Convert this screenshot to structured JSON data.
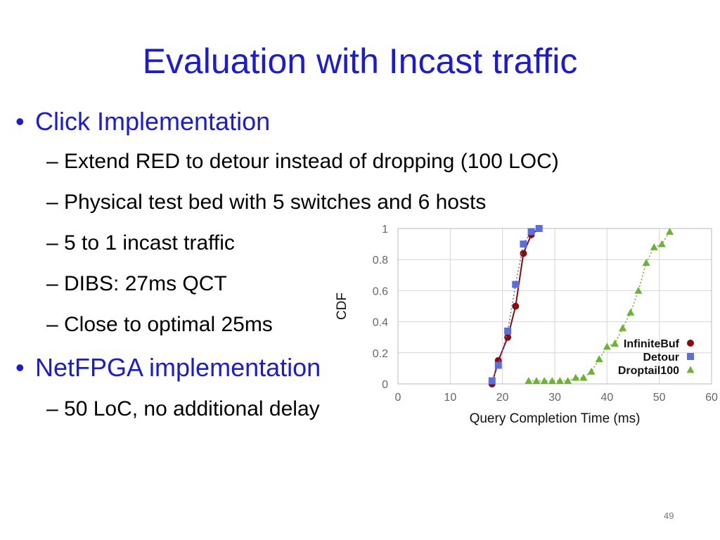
{
  "title": "Evaluation with Incast traffic",
  "bullets": [
    {
      "label": "Click Implementation",
      "subitems": [
        "– Extend RED to detour instead of dropping (100 LOC)",
        "– Physical test bed with 5 switches and 6 hosts",
        "– 5 to 1 incast traffic",
        "– DIBS: 27ms QCT",
        "– Close to optimal 25ms"
      ]
    },
    {
      "label": "NetFPGA implementation",
      "subitems": [
        "– 50 LoC, no additional delay"
      ]
    }
  ],
  "page_number": "49",
  "chart_data": {
    "type": "line",
    "title": "",
    "xlabel": "Query Completion Time (ms)",
    "ylabel": "CDF",
    "xlim": [
      0,
      60
    ],
    "ylim": [
      0,
      1
    ],
    "xticks": [
      0,
      10,
      20,
      30,
      40,
      50,
      60
    ],
    "yticks": [
      0,
      0.2,
      0.4,
      0.6,
      0.8,
      1
    ],
    "ytick_labels": [
      "0",
      "0.2",
      "0.4",
      "0.6",
      "0.8",
      "1"
    ],
    "grid": true,
    "legend": "bottom-right",
    "series": [
      {
        "name": "InfiniteBuf",
        "color": "#8b0a0a",
        "marker": "circle",
        "line": "solid",
        "points": [
          [
            18,
            0.0
          ],
          [
            19.2,
            0.15
          ],
          [
            21,
            0.3
          ],
          [
            22.5,
            0.5
          ],
          [
            24,
            0.84
          ],
          [
            25.5,
            0.96
          ],
          [
            27,
            1.0
          ]
        ]
      },
      {
        "name": "Detour",
        "color": "#5b6ee0",
        "marker": "square",
        "line": "dotted",
        "points": [
          [
            18,
            0.02
          ],
          [
            19.2,
            0.12
          ],
          [
            21,
            0.34
          ],
          [
            22.5,
            0.64
          ],
          [
            24,
            0.9
          ],
          [
            25.5,
            0.98
          ],
          [
            27,
            1.0
          ]
        ]
      },
      {
        "name": "Droptail100",
        "color": "#6ab52e",
        "marker": "triangle",
        "line": "dotted",
        "points": [
          [
            25,
            0.02
          ],
          [
            26.5,
            0.02
          ],
          [
            28,
            0.02
          ],
          [
            29.5,
            0.02
          ],
          [
            31,
            0.02
          ],
          [
            32.5,
            0.02
          ],
          [
            34,
            0.04
          ],
          [
            35.5,
            0.04
          ],
          [
            37,
            0.08
          ],
          [
            38.5,
            0.16
          ],
          [
            40,
            0.24
          ],
          [
            41.5,
            0.26
          ],
          [
            43,
            0.36
          ],
          [
            44.5,
            0.46
          ],
          [
            46,
            0.6
          ],
          [
            47.5,
            0.78
          ],
          [
            49,
            0.88
          ],
          [
            50.5,
            0.9
          ],
          [
            52,
            0.98
          ]
        ]
      }
    ]
  }
}
